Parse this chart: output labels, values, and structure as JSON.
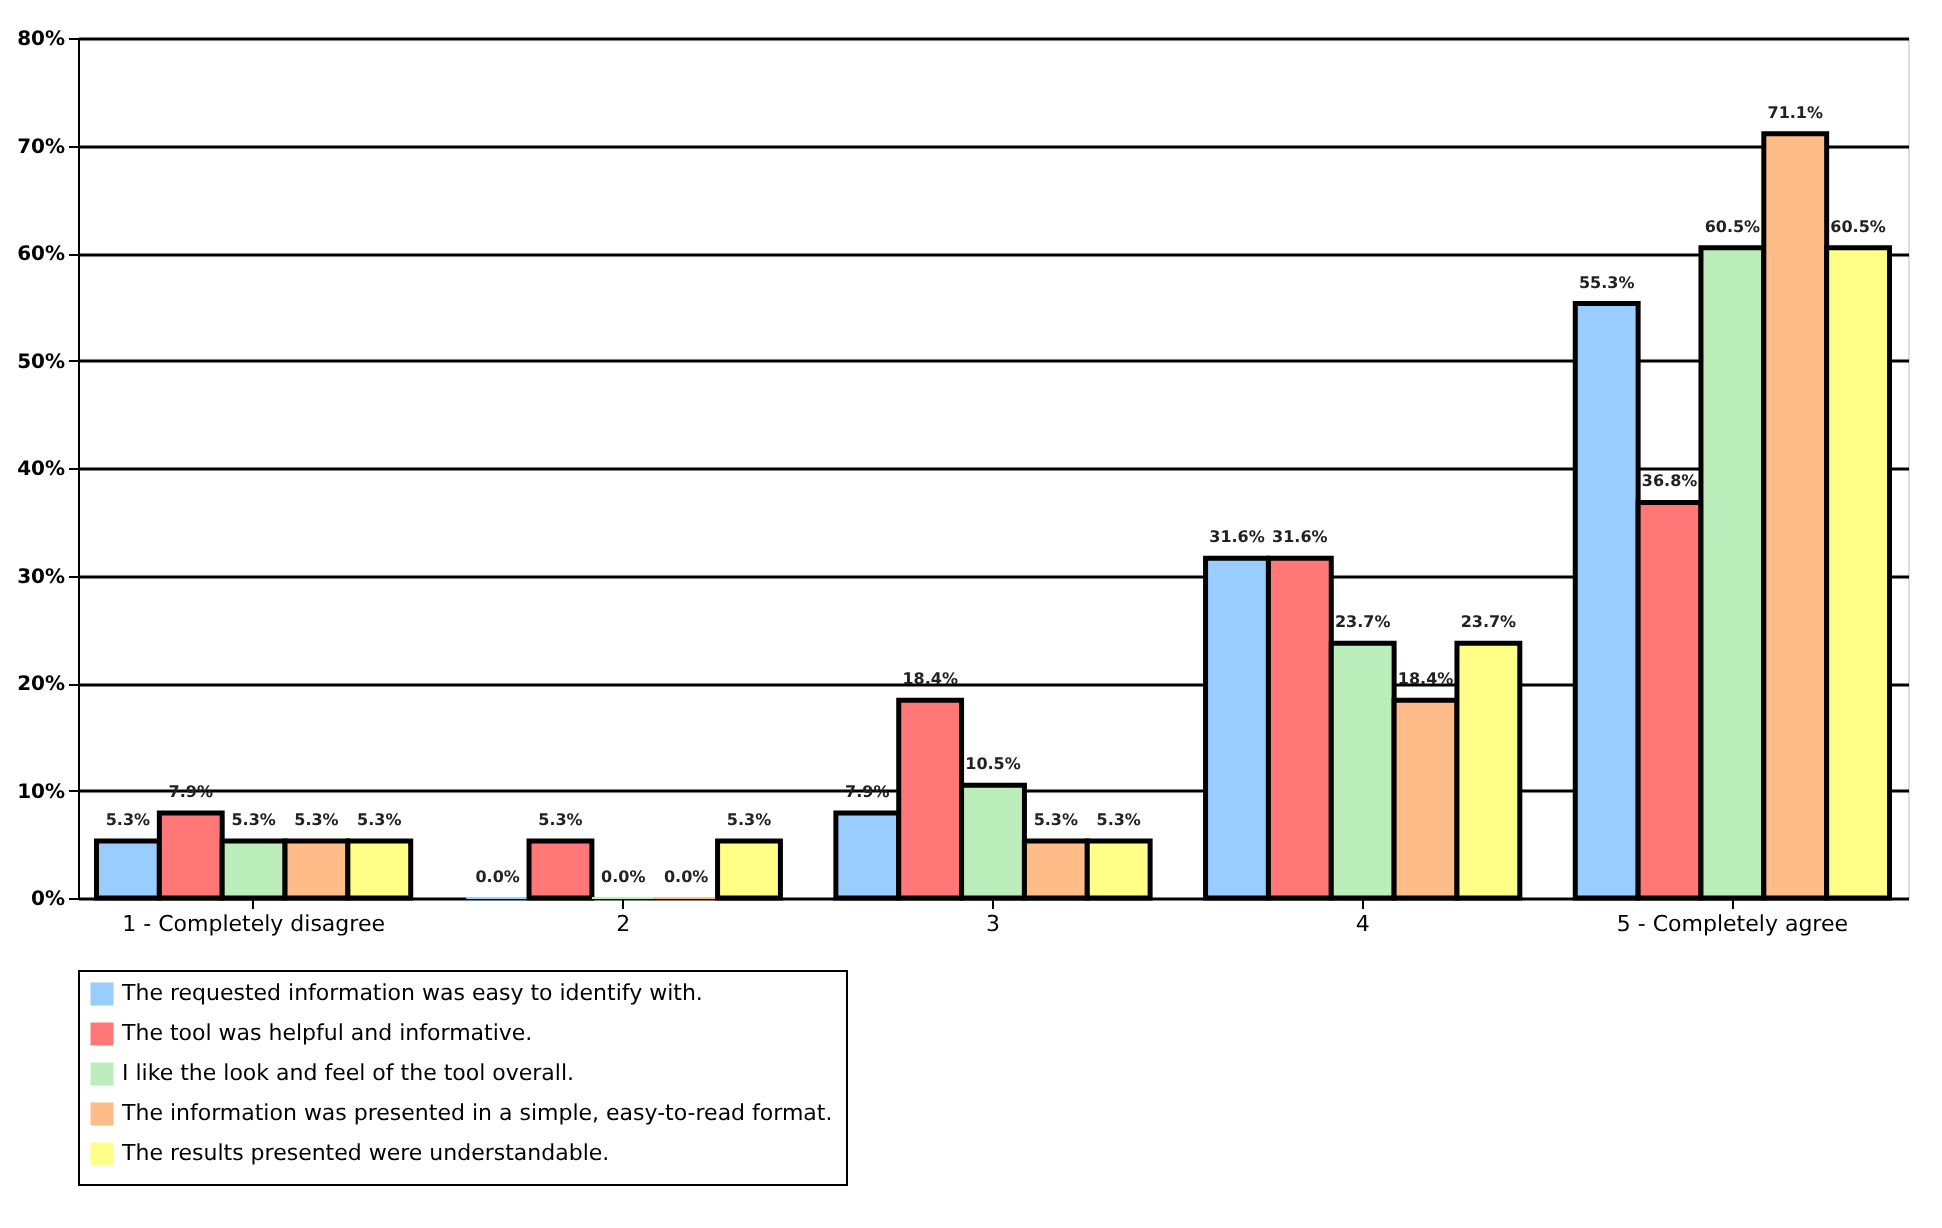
{
  "chart_data": {
    "type": "bar",
    "categories": [
      "1 - Completely disagree",
      "2",
      "3",
      "4",
      "5 - Completely agree"
    ],
    "series": [
      {
        "name": "The requested information was easy to identify with.",
        "color": "#99ccff",
        "values": [
          5.3,
          0.0,
          7.9,
          31.6,
          55.3
        ],
        "value_labels": [
          "5.3%",
          "0.0%",
          "7.9%",
          "31.6%",
          "55.3%"
        ]
      },
      {
        "name": "The tool was helpful and informative.",
        "color": "#ff7777",
        "values": [
          7.9,
          5.3,
          18.4,
          31.6,
          36.8
        ],
        "value_labels": [
          "7.9%",
          "5.3%",
          "18.4%",
          "31.6%",
          "36.8%"
        ]
      },
      {
        "name": "I like the look and feel of the tool overall.",
        "color": "#bbeebb",
        "values": [
          5.3,
          0.0,
          10.5,
          23.7,
          60.5
        ],
        "value_labels": [
          "5.3%",
          "0.0%",
          "10.5%",
          "23.7%",
          "60.5%"
        ]
      },
      {
        "name": "The information was presented in a simple, easy-to-read format.",
        "color": "#ffbb88",
        "values": [
          5.3,
          0.0,
          5.3,
          18.4,
          71.1
        ],
        "value_labels": [
          "5.3%",
          "0.0%",
          "5.3%",
          "18.4%",
          "71.1%"
        ]
      },
      {
        "name": "The results presented were understandable.",
        "color": "#ffff88",
        "values": [
          5.3,
          5.3,
          5.3,
          23.7,
          60.5
        ],
        "value_labels": [
          "5.3%",
          "5.3%",
          "5.3%",
          "23.7%",
          "60.5%"
        ]
      }
    ],
    "ylim": [
      0,
      80
    ],
    "yticks": [
      {
        "value": 0,
        "label": "0%"
      },
      {
        "value": 10,
        "label": "10%"
      },
      {
        "value": 20,
        "label": "20%"
      },
      {
        "value": 30,
        "label": "30%"
      },
      {
        "value": 40,
        "label": "40%"
      },
      {
        "value": 50,
        "label": "50%"
      },
      {
        "value": 60,
        "label": "60%"
      },
      {
        "value": 70,
        "label": "70%"
      },
      {
        "value": 80,
        "label": "80%"
      }
    ],
    "grid": "y",
    "legend": "bottom"
  }
}
